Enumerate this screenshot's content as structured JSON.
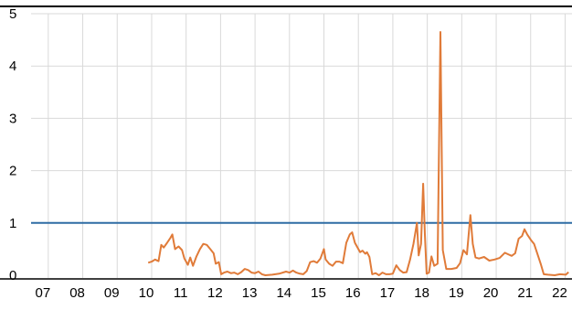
{
  "chart_data": {
    "type": "line",
    "title": "",
    "xlabel": "",
    "ylabel": "",
    "ylim": [
      0,
      5
    ],
    "xlim": [
      6.5,
      22.2
    ],
    "grid": {
      "x": true,
      "y": true
    },
    "legend": "none",
    "y_ticks": [
      "0",
      "1",
      "2",
      "3",
      "4",
      "5"
    ],
    "x_ticks": [
      "07",
      "08",
      "09",
      "10",
      "11",
      "12",
      "13",
      "14",
      "15",
      "16",
      "17",
      "18",
      "19",
      "20",
      "21",
      "22"
    ],
    "colors": {
      "series": "#e07b39",
      "threshold": "#2e6ca4",
      "grid": "#d9d9d9",
      "frame": "#000000"
    },
    "series": [
      {
        "values": [
          [
            9.9,
            0.24
          ],
          [
            10.0,
            0.26
          ],
          [
            10.1,
            0.3
          ],
          [
            10.2,
            0.27
          ],
          [
            10.28,
            0.58
          ],
          [
            10.35,
            0.53
          ],
          [
            10.45,
            0.62
          ],
          [
            10.55,
            0.72
          ],
          [
            10.6,
            0.78
          ],
          [
            10.68,
            0.5
          ],
          [
            10.78,
            0.55
          ],
          [
            10.88,
            0.48
          ],
          [
            10.95,
            0.32
          ],
          [
            11.05,
            0.2
          ],
          [
            11.12,
            0.34
          ],
          [
            11.2,
            0.18
          ],
          [
            11.3,
            0.36
          ],
          [
            11.4,
            0.5
          ],
          [
            11.5,
            0.6
          ],
          [
            11.6,
            0.58
          ],
          [
            11.7,
            0.5
          ],
          [
            11.8,
            0.42
          ],
          [
            11.86,
            0.22
          ],
          [
            11.95,
            0.25
          ],
          [
            12.02,
            0.02
          ],
          [
            12.1,
            0.05
          ],
          [
            12.2,
            0.07
          ],
          [
            12.3,
            0.04
          ],
          [
            12.4,
            0.05
          ],
          [
            12.5,
            0.02
          ],
          [
            12.6,
            0.06
          ],
          [
            12.7,
            0.12
          ],
          [
            12.8,
            0.1
          ],
          [
            12.9,
            0.05
          ],
          [
            13.0,
            0.04
          ],
          [
            13.1,
            0.07
          ],
          [
            13.2,
            0.02
          ],
          [
            13.3,
            0.0
          ],
          [
            13.5,
            0.01
          ],
          [
            13.7,
            0.03
          ],
          [
            13.9,
            0.07
          ],
          [
            14.0,
            0.05
          ],
          [
            14.1,
            0.09
          ],
          [
            14.2,
            0.05
          ],
          [
            14.3,
            0.03
          ],
          [
            14.4,
            0.02
          ],
          [
            14.5,
            0.08
          ],
          [
            14.6,
            0.25
          ],
          [
            14.7,
            0.27
          ],
          [
            14.8,
            0.24
          ],
          [
            14.9,
            0.32
          ],
          [
            15.0,
            0.5
          ],
          [
            15.05,
            0.3
          ],
          [
            15.15,
            0.22
          ],
          [
            15.25,
            0.18
          ],
          [
            15.35,
            0.26
          ],
          [
            15.45,
            0.26
          ],
          [
            15.55,
            0.23
          ],
          [
            15.65,
            0.62
          ],
          [
            15.75,
            0.78
          ],
          [
            15.82,
            0.82
          ],
          [
            15.9,
            0.62
          ],
          [
            16.0,
            0.5
          ],
          [
            16.05,
            0.44
          ],
          [
            16.12,
            0.47
          ],
          [
            16.2,
            0.41
          ],
          [
            16.25,
            0.44
          ],
          [
            16.32,
            0.35
          ],
          [
            16.4,
            0.02
          ],
          [
            16.5,
            0.04
          ],
          [
            16.6,
            0.0
          ],
          [
            16.7,
            0.05
          ],
          [
            16.8,
            0.02
          ],
          [
            16.9,
            0.02
          ],
          [
            17.0,
            0.03
          ],
          [
            17.1,
            0.19
          ],
          [
            17.2,
            0.1
          ],
          [
            17.3,
            0.05
          ],
          [
            17.4,
            0.06
          ],
          [
            17.5,
            0.3
          ],
          [
            17.6,
            0.6
          ],
          [
            17.7,
            1.0
          ],
          [
            17.75,
            0.38
          ],
          [
            17.82,
            0.6
          ],
          [
            17.88,
            1.75
          ],
          [
            17.93,
            0.78
          ],
          [
            17.98,
            0.03
          ],
          [
            18.05,
            0.05
          ],
          [
            18.12,
            0.36
          ],
          [
            18.2,
            0.18
          ],
          [
            18.3,
            0.22
          ],
          [
            18.38,
            4.65
          ],
          [
            18.45,
            0.48
          ],
          [
            18.55,
            0.12
          ],
          [
            18.7,
            0.12
          ],
          [
            18.85,
            0.14
          ],
          [
            18.95,
            0.23
          ],
          [
            19.05,
            0.48
          ],
          [
            19.15,
            0.4
          ],
          [
            19.25,
            1.15
          ],
          [
            19.32,
            0.6
          ],
          [
            19.4,
            0.34
          ],
          [
            19.5,
            0.32
          ],
          [
            19.65,
            0.35
          ],
          [
            19.8,
            0.28
          ],
          [
            19.95,
            0.3
          ],
          [
            20.1,
            0.33
          ],
          [
            20.25,
            0.43
          ],
          [
            20.35,
            0.4
          ],
          [
            20.45,
            0.37
          ],
          [
            20.55,
            0.42
          ],
          [
            20.65,
            0.7
          ],
          [
            20.75,
            0.75
          ],
          [
            20.82,
            0.88
          ],
          [
            20.9,
            0.78
          ],
          [
            21.0,
            0.68
          ],
          [
            21.1,
            0.6
          ],
          [
            21.2,
            0.4
          ],
          [
            21.3,
            0.2
          ],
          [
            21.38,
            0.02
          ],
          [
            21.5,
            0.01
          ],
          [
            21.7,
            0.0
          ],
          [
            21.85,
            0.02
          ],
          [
            22.02,
            0.01
          ],
          [
            22.1,
            0.06
          ]
        ]
      },
      {
        "values": [
          [
            6.5,
            1.0
          ],
          [
            22.2,
            1.0
          ]
        ]
      }
    ]
  }
}
